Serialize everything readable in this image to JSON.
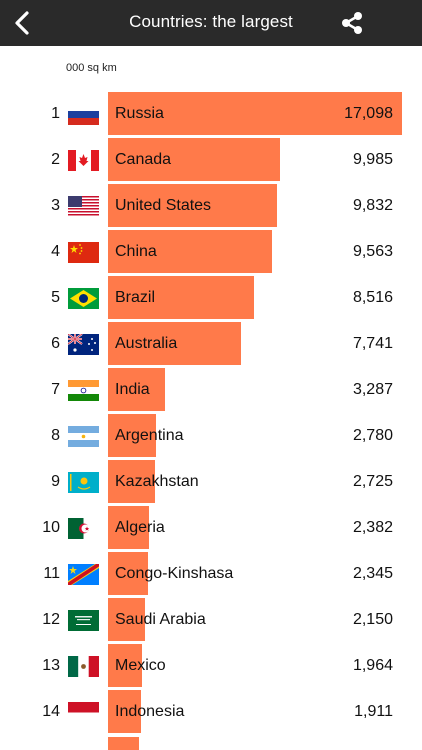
{
  "header": {
    "title": "Countries: the largest",
    "back_icon": "chevron-left-icon",
    "share_icon": "share-icon"
  },
  "unit_label": "000 sq km",
  "colors": {
    "bar": "#ff7a4a",
    "header": "#2a2a2a"
  },
  "countries": [
    {
      "rank": "1",
      "name": "Russia",
      "value": "17,098",
      "flag": "russia"
    },
    {
      "rank": "2",
      "name": "Canada",
      "value": "9,985",
      "flag": "canada"
    },
    {
      "rank": "3",
      "name": "United States",
      "value": "9,832",
      "flag": "usa"
    },
    {
      "rank": "4",
      "name": "China",
      "value": "9,563",
      "flag": "china"
    },
    {
      "rank": "5",
      "name": "Brazil",
      "value": "8,516",
      "flag": "brazil"
    },
    {
      "rank": "6",
      "name": "Australia",
      "value": "7,741",
      "flag": "australia"
    },
    {
      "rank": "7",
      "name": "India",
      "value": "3,287",
      "flag": "india"
    },
    {
      "rank": "8",
      "name": "Argentina",
      "value": "2,780",
      "flag": "argentina"
    },
    {
      "rank": "9",
      "name": "Kazakhstan",
      "value": "2,725",
      "flag": "kazakhstan"
    },
    {
      "rank": "10",
      "name": "Algeria",
      "value": "2,382",
      "flag": "algeria"
    },
    {
      "rank": "11",
      "name": "Congo-Kinshasa",
      "value": "2,345",
      "flag": "drc"
    },
    {
      "rank": "12",
      "name": "Saudi Arabia",
      "value": "2,150",
      "flag": "saudi"
    },
    {
      "rank": "13",
      "name": "Mexico",
      "value": "1,964",
      "flag": "mexico"
    },
    {
      "rank": "14",
      "name": "Indonesia",
      "value": "1,911",
      "flag": "indonesia"
    }
  ]
}
